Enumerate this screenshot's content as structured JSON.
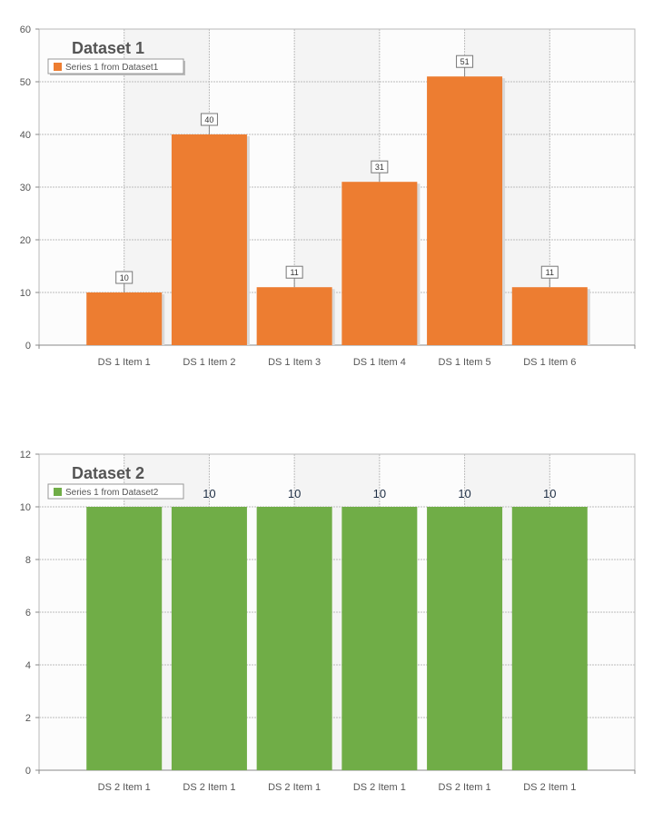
{
  "chart_data": [
    {
      "type": "bar",
      "title": "Dataset 1",
      "categories": [
        "DS 1 Item 1",
        "DS 1 Item 2",
        "DS 1 Item 3",
        "DS 1 Item 4",
        "DS 1 Item 5",
        "DS 1 Item 6"
      ],
      "series": [
        {
          "name": "Series 1 from Dataset1",
          "values": [
            10,
            40,
            11,
            31,
            51,
            11
          ],
          "color": "#ED7D31"
        }
      ],
      "ylim": [
        0,
        60
      ],
      "yticks": [
        0,
        10,
        20,
        30,
        40,
        50,
        60
      ],
      "grid": true,
      "legend": "top-left",
      "data_label_style": "boxed",
      "bar_shadow": true
    },
    {
      "type": "bar",
      "title": "Dataset 2",
      "categories": [
        "DS 2 Item 1",
        "DS 2 Item 1",
        "DS 2 Item 1",
        "DS 2 Item 1",
        "DS 2 Item 1",
        "DS 2 Item 1"
      ],
      "series": [
        {
          "name": "Series 1 from Dataset2",
          "values": [
            10,
            10,
            10,
            10,
            10,
            10
          ],
          "color": "#70AD47"
        }
      ],
      "ylim": [
        0,
        12
      ],
      "yticks": [
        0,
        2,
        4,
        6,
        8,
        10,
        12
      ],
      "grid": true,
      "legend": "top-left",
      "data_label_style": "plain",
      "bar_shadow": false
    }
  ]
}
